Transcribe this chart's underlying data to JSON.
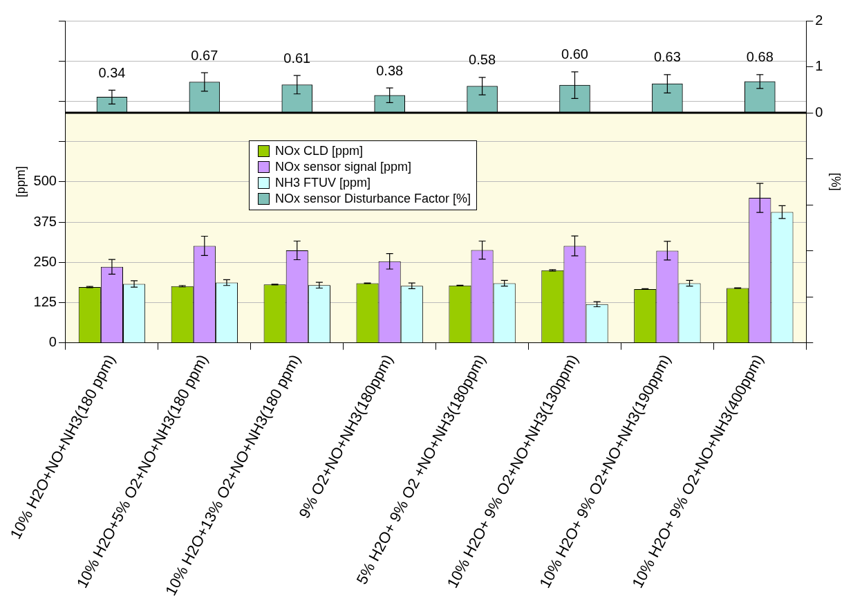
{
  "chart_data": {
    "type": "bar",
    "categories": [
      "10% H2O+NO+NH3(180 ppm)",
      "10% H2O+5% O2+NO+NH3(180 ppm)",
      "10% H2O+13% O2+NO+NH3(180 ppm)",
      "9% O2+NO+NH3(180ppm)",
      "5% H2O+ 9% O2 +NO+NH3(180ppm)",
      "10% H2O+ 9% O2+NO+NH3(130ppm)",
      "10% H2O+ 9% O2+NO+NH3(190ppm)",
      "10% H2O+ 9% O2+NO+NH3(400ppm)"
    ],
    "series": [
      {
        "name": "NOx CLD [ppm]",
        "color": "#99cc00",
        "values": [
          173,
          176,
          181,
          185,
          178,
          225,
          167,
          170
        ],
        "errors": [
          2,
          2,
          1,
          1,
          1,
          2,
          1,
          1
        ]
      },
      {
        "name": "NOx sensor signal [ppm]",
        "color": "#cc99ff",
        "values": [
          236,
          301,
          287,
          253,
          288,
          301,
          286,
          450
        ],
        "errors": [
          23,
          30,
          29,
          24,
          28,
          31,
          29,
          45
        ]
      },
      {
        "name": "NH3 FTUV [ppm]",
        "color": "#ccffff",
        "values": [
          183,
          187,
          179,
          177,
          185,
          120,
          185,
          406
        ],
        "errors": [
          10,
          9,
          9,
          9,
          9,
          8,
          9,
          20
        ]
      },
      {
        "name": "NOx sensor Disturbance Factor [%]",
        "color": "#80c0b8",
        "axis": "y2",
        "values": [
          0.34,
          0.67,
          0.61,
          0.38,
          0.58,
          0.6,
          0.63,
          0.68
        ],
        "errors": [
          0.15,
          0.2,
          0.2,
          0.16,
          0.19,
          0.29,
          0.2,
          0.15
        ],
        "value_labels": [
          "0.34",
          "0.67",
          "0.61",
          "0.38",
          "0.58",
          "0.60",
          "0.63",
          "0.68"
        ]
      }
    ],
    "ylabel": "[ppm]",
    "y2label": "[%]",
    "ylim": [
      0,
      1000
    ],
    "yticks": [
      0,
      125,
      250,
      375,
      500,
      {
        "value": 625,
        "label": null
      },
      {
        "value": 750,
        "label": null
      },
      {
        "value": 875,
        "label": null
      },
      {
        "value": 1000,
        "label": null
      }
    ],
    "y2lim": [
      -5,
      2
    ],
    "y2ticks": [
      {
        "value": -5,
        "label": null
      },
      {
        "value": -4,
        "label": null
      },
      {
        "value": -3,
        "label": null
      },
      {
        "value": -2,
        "label": null
      },
      {
        "value": -1,
        "label": null
      },
      0,
      1,
      2
    ],
    "ref_lines": [
      {
        "axis": "y2",
        "value": 0,
        "color": "#000000"
      }
    ],
    "bands": [
      {
        "axis": "y2",
        "from": -5,
        "to": 0,
        "color": "#fdfbe2"
      }
    ],
    "grid": "y",
    "legend": "top"
  }
}
